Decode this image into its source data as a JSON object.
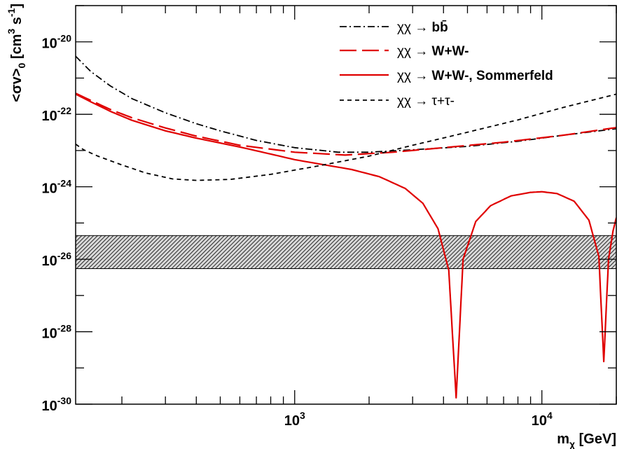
{
  "chart_data": {
    "type": "line",
    "title": "",
    "xlabel": "m_χ [GeV]",
    "xlabel_parts": {
      "main": "m",
      "sub": "χ",
      "rest": " [GeV]"
    },
    "ylabel": "<σv>_0 [cm^3 s^-1]",
    "ylabel_parts": {
      "a": "<σv>",
      "sub": "0",
      "b": " [cm",
      "sup1": "3",
      "c": " s",
      "sup2": "-1",
      "d": "]"
    },
    "x_scale": "log",
    "y_scale": "log",
    "xlim": [
      130,
      20000
    ],
    "ylim": [
      1e-30,
      1e-19
    ],
    "x_tick_labels": [
      {
        "value": 1000,
        "base": "10",
        "exp": "3"
      },
      {
        "value": 10000,
        "base": "10",
        "exp": "4"
      }
    ],
    "y_tick_labels": [
      {
        "value": 1e-20,
        "base": "10",
        "exp": "-20"
      },
      {
        "value": 1e-22,
        "base": "10",
        "exp": "-22"
      },
      {
        "value": 1e-24,
        "base": "10",
        "exp": "-24"
      },
      {
        "value": 1e-26,
        "base": "10",
        "exp": "-26"
      },
      {
        "value": 1e-28,
        "base": "10",
        "exp": "-28"
      },
      {
        "value": 1e-30,
        "base": "10",
        "exp": "-30"
      }
    ],
    "band": {
      "y_low": 5.5e-27,
      "y_high": 4.5e-26,
      "pattern": "hatched"
    },
    "legend_position": "top-right",
    "series": [
      {
        "name": "χχ → bb̄",
        "legend": {
          "pre": "χχ → ",
          "bold": "bb̄",
          "sup": "",
          "sub": "",
          "post": ""
        },
        "color": "#000000",
        "dash": "10,4,2,4",
        "width": 1.8,
        "points": [
          [
            130,
            4e-21
          ],
          [
            150,
            1.5e-21
          ],
          [
            180,
            6e-22
          ],
          [
            220,
            2.7e-22
          ],
          [
            300,
            1.1e-22
          ],
          [
            400,
            5.5e-23
          ],
          [
            500,
            3.5e-23
          ],
          [
            700,
            1.9e-23
          ],
          [
            1000,
            1.2e-23
          ],
          [
            1500,
            9e-24
          ],
          [
            2000,
            9e-24
          ],
          [
            3000,
            1.05e-23
          ],
          [
            5000,
            1.3e-23
          ],
          [
            8000,
            1.8e-23
          ],
          [
            12000,
            2.6e-23
          ],
          [
            20000,
            4e-23
          ]
        ]
      },
      {
        "name": "χχ → W+W-",
        "legend": {
          "pre": "χχ → ",
          "bold": "W+W-",
          "sup": "",
          "sub": "",
          "post": ""
        },
        "color": "#e00000",
        "dash": "24,8",
        "width": 2.2,
        "points": [
          [
            130,
            3.8e-22
          ],
          [
            150,
            2.4e-22
          ],
          [
            180,
            1.35e-22
          ],
          [
            220,
            8e-23
          ],
          [
            300,
            4.2e-23
          ],
          [
            400,
            2.5e-23
          ],
          [
            600,
            1.4e-23
          ],
          [
            1000,
            9e-24
          ],
          [
            1600,
            7.5e-24
          ],
          [
            2500,
            9e-24
          ],
          [
            4000,
            1.2e-23
          ],
          [
            7000,
            1.7e-23
          ],
          [
            12000,
            2.6e-23
          ],
          [
            20000,
            4.3e-23
          ]
        ]
      },
      {
        "name": "χχ → W+W-, Sommerfeld",
        "legend": {
          "pre": "χχ → ",
          "bold": "W+W-, Sommerfeld",
          "sup": "",
          "sub": "",
          "post": ""
        },
        "color": "#e00000",
        "dash": "",
        "width": 2.2,
        "points": [
          [
            130,
            3.6e-22
          ],
          [
            150,
            2.2e-22
          ],
          [
            180,
            1.2e-22
          ],
          [
            220,
            6.8e-23
          ],
          [
            300,
            3.5e-23
          ],
          [
            400,
            2.2e-23
          ],
          [
            600,
            1.25e-23
          ],
          [
            800,
            8e-24
          ],
          [
            1000,
            5.6e-24
          ],
          [
            1300,
            4.1e-24
          ],
          [
            1700,
            3e-24
          ],
          [
            2200,
            1.9e-24
          ],
          [
            2800,
            9e-25
          ],
          [
            3300,
            3.5e-25
          ],
          [
            3800,
            7e-26
          ],
          [
            4200,
            5e-27
          ],
          [
            4500,
            1.5e-30
          ],
          [
            4800,
            1e-26
          ],
          [
            5400,
            1.1e-25
          ],
          [
            6200,
            3e-25
          ],
          [
            7500,
            5.6e-25
          ],
          [
            9000,
            7e-25
          ],
          [
            10000,
            7.3e-25
          ],
          [
            11500,
            6.5e-25
          ],
          [
            13500,
            4e-25
          ],
          [
            15500,
            1.2e-25
          ],
          [
            17000,
            1.2e-26
          ],
          [
            17800,
            1.5e-29
          ],
          [
            18600,
            1e-26
          ],
          [
            19400,
            6e-26
          ],
          [
            20000,
            1.4e-25
          ]
        ]
      },
      {
        "name": "χχ → τ+τ-",
        "legend": {
          "pre": "χχ → ",
          "bold": "",
          "sup": "",
          "sub": "",
          "post": "τ+τ-"
        },
        "color": "#000000",
        "dash": "6,5",
        "width": 1.8,
        "points": [
          [
            130,
            1.5e-23
          ],
          [
            140,
            1.05e-23
          ],
          [
            160,
            7e-24
          ],
          [
            200,
            4e-24
          ],
          [
            250,
            2.4e-24
          ],
          [
            320,
            1.65e-24
          ],
          [
            400,
            1.5e-24
          ],
          [
            550,
            1.6e-24
          ],
          [
            800,
            2.2e-24
          ],
          [
            1200,
            3.6e-24
          ],
          [
            2000,
            7e-24
          ],
          [
            3000,
            1.4e-23
          ],
          [
            5000,
            3.2e-23
          ],
          [
            8000,
            7e-23
          ],
          [
            12000,
            1.5e-22
          ],
          [
            20000,
            3.6e-22
          ]
        ]
      }
    ]
  }
}
